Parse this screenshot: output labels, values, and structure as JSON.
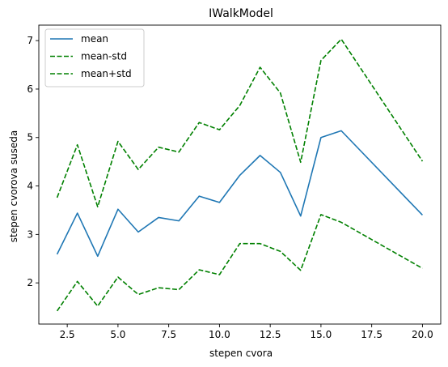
{
  "chart_data": {
    "type": "line",
    "title": "IWalkModel",
    "xlabel": "stepen cvora",
    "ylabel": "stepen cvorova suseda",
    "xlim": [
      1.1,
      20.9
    ],
    "ylim": [
      1.15,
      7.32
    ],
    "xticks": [
      2.5,
      5.0,
      7.5,
      10.0,
      12.5,
      15.0,
      17.5,
      20.0
    ],
    "xtick_labels": [
      "2.5",
      "5.0",
      "7.5",
      "10.0",
      "12.5",
      "15.0",
      "17.5",
      "20.0"
    ],
    "yticks": [
      2,
      3,
      4,
      5,
      6,
      7
    ],
    "ytick_labels": [
      "2",
      "3",
      "4",
      "5",
      "6",
      "7"
    ],
    "grid": false,
    "legend_position": "top-left",
    "x": [
      2,
      3,
      4,
      5,
      6,
      7,
      8,
      9,
      10,
      11,
      12,
      13,
      14,
      15,
      16,
      20
    ],
    "series": [
      {
        "name": "mean",
        "color": "#1f77b4",
        "dash": "solid",
        "values": [
          2.59,
          3.44,
          2.55,
          3.52,
          3.05,
          3.35,
          3.28,
          3.79,
          3.66,
          4.22,
          4.63,
          4.28,
          3.38,
          5.0,
          5.14,
          3.4
        ]
      },
      {
        "name": "mean-std",
        "color": "#008000",
        "dash": "dashed",
        "values": [
          1.42,
          2.03,
          1.52,
          2.12,
          1.76,
          1.9,
          1.86,
          2.27,
          2.17,
          2.81,
          2.81,
          2.65,
          2.26,
          3.41,
          3.25,
          2.3
        ]
      },
      {
        "name": "mean+std",
        "color": "#008000",
        "dash": "dashed",
        "values": [
          3.76,
          4.85,
          3.57,
          4.92,
          4.34,
          4.8,
          4.7,
          5.31,
          5.16,
          5.66,
          6.45,
          5.92,
          4.49,
          6.59,
          7.03,
          4.51
        ]
      }
    ]
  }
}
